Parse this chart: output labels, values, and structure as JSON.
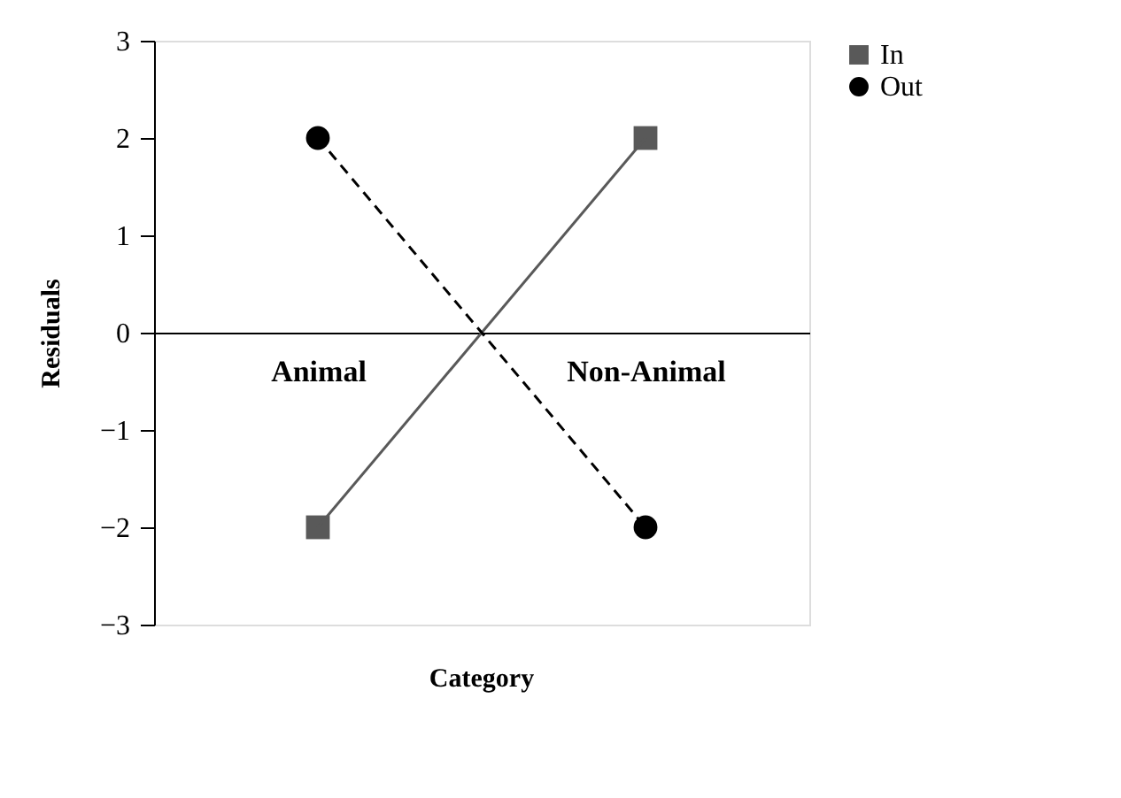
{
  "chart_data": {
    "type": "line",
    "xlabel": "Category",
    "ylabel": "Residuals",
    "categories": [
      "Animal",
      "Non-Animal"
    ],
    "series": [
      {
        "name": "In",
        "color": "#595959",
        "values": [
          -2,
          2
        ],
        "marker": "square",
        "line_style": "solid"
      },
      {
        "name": "Out",
        "color": "#000000",
        "values": [
          2,
          -2
        ],
        "marker": "circle",
        "line_style": "dashed"
      }
    ],
    "ylim": [
      -3,
      3
    ],
    "yticks": [
      -3,
      -2,
      -1,
      0,
      1,
      2,
      3
    ],
    "grid": false,
    "legend": "top right"
  }
}
